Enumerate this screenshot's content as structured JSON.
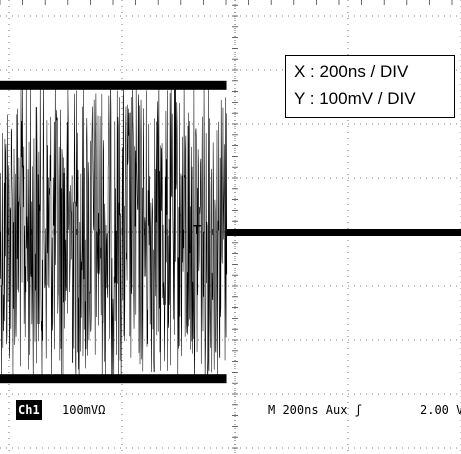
{
  "chart_data": {
    "type": "line",
    "title": "",
    "scale_labels": {
      "x": "X : 200ns / DIV",
      "y": "Y : 100mV / DIV"
    },
    "grid": "on",
    "x_divisions": 8,
    "y_divisions": 8,
    "series": [
      {
        "segment": "burst",
        "x_range_ns": [
          -750,
          -15
        ],
        "envelope_mV": [
          -280,
          280
        ]
      },
      {
        "segment": "flat",
        "x_range_ns": [
          -15,
          880
        ],
        "value_mV": 0
      }
    ],
    "trigger_marker": "T",
    "readout": {
      "channel": "Ch1",
      "volts_div": "100mVΩ",
      "timebase": "M  200ns  Aux ʃ",
      "trigger_level": "2.00 V"
    }
  }
}
